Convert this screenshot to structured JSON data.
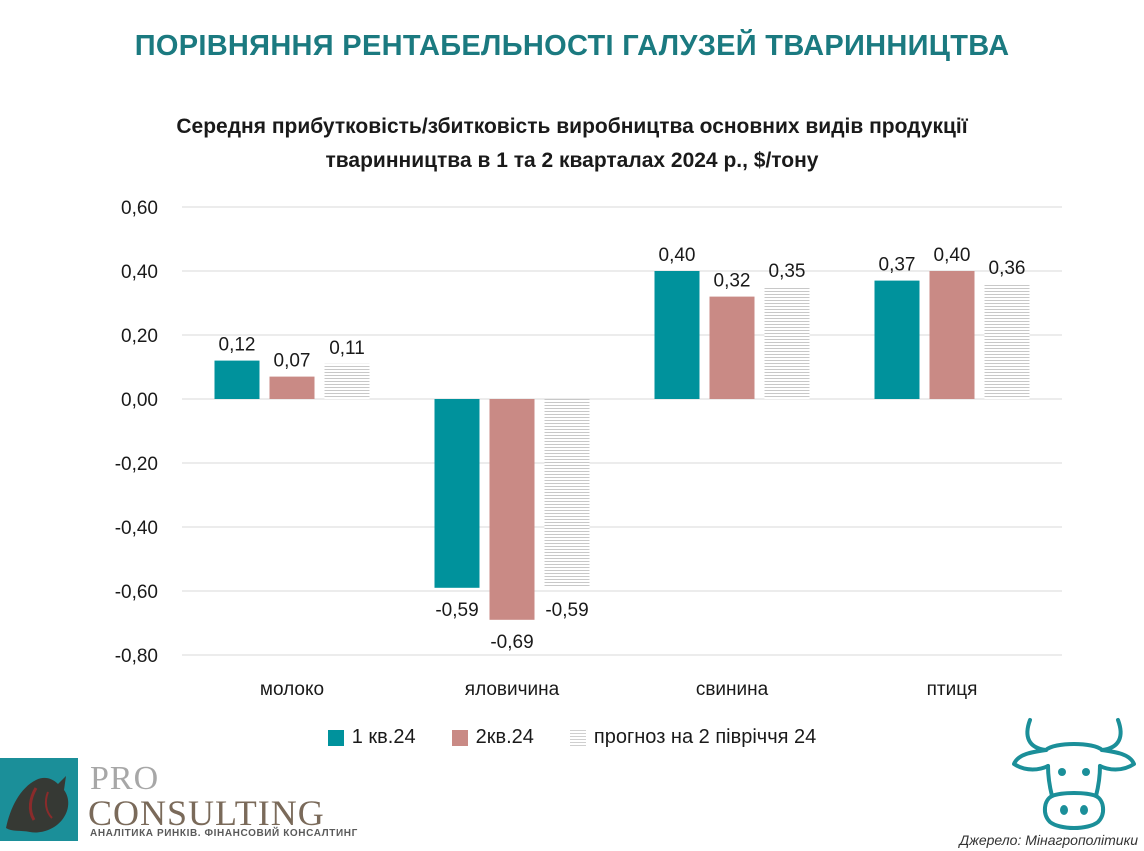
{
  "header": {
    "title": "ПОРІВНЯННЯ РЕНТАБЕЛЬНОСТІ ГАЛУЗЕЙ ТВАРИННИЦТВА"
  },
  "chart_data": {
    "type": "bar",
    "title_lines": [
      "Середня прибутковість/збитковість виробництва основних видів продукції",
      "тваринництва в 1 та 2 кварталах 2024 р., $/тону"
    ],
    "categories": [
      "молоко",
      "яловичина",
      "свинина",
      "птиця"
    ],
    "series": [
      {
        "name": "1 кв.24",
        "values": [
          0.12,
          -0.59,
          0.4,
          0.37
        ],
        "labels": [
          "0,12",
          "-0,59",
          "0,40",
          "0,37"
        ],
        "color": "#00929c"
      },
      {
        "name": "2кв.24",
        "values": [
          0.07,
          -0.69,
          0.32,
          0.4
        ],
        "labels": [
          "0,07",
          "-0,69",
          "0,32",
          "0,40"
        ],
        "color": "#c98a85"
      },
      {
        "name": "прогноз на 2 півріччя 24",
        "values": [
          0.11,
          -0.59,
          0.35,
          0.36
        ],
        "labels": [
          "0,11",
          "-0,59",
          "0,35",
          "0,36"
        ],
        "color": "#cfcfcf",
        "pattern": "horizontal-lines"
      }
    ],
    "y_ticks": [
      "0,60",
      "0,40",
      "0,20",
      "0,00",
      "-0,20",
      "-0,40",
      "-0,60",
      "-0,80"
    ],
    "y_tick_values": [
      0.6,
      0.4,
      0.2,
      0.0,
      -0.2,
      -0.4,
      -0.6,
      -0.8
    ],
    "ylim": [
      -0.8,
      0.6
    ],
    "xlabel": "",
    "ylabel": "",
    "grid": true,
    "legend_position": "bottom"
  },
  "footer": {
    "logo_pro": "PRO",
    "logo_consulting": "CONSULTING",
    "logo_tagline": "АНАЛІТИКА РИНКІВ. ФІНАНСОВИЙ КОНСАЛТИНГ",
    "source": "Джерело: Мінагрополітики"
  },
  "icons": {
    "logo": "rhino-logo-icon",
    "cow": "cow-icon"
  }
}
